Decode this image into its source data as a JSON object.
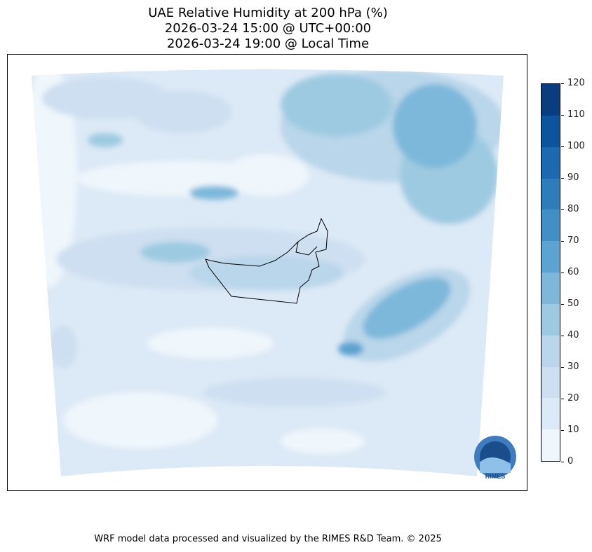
{
  "title": {
    "line1": "UAE Relative Humidity at 200 hPa (%)",
    "line2": "2026-03-24 15:00 @ UTC+00:00",
    "line3": "2026-03-24 19:00 @ Local Time"
  },
  "colorbar": {
    "ticks": [
      "0",
      "10",
      "20",
      "30",
      "40",
      "50",
      "60",
      "70",
      "80",
      "90",
      "100",
      "110",
      "120"
    ],
    "colors": [
      "#eff6fc",
      "#dce9f6",
      "#cddff1",
      "#b9d6ea",
      "#9ecae1",
      "#7db8da",
      "#5ba3d0",
      "#4090c5",
      "#2d7dbb",
      "#1b69af",
      "#0b559f",
      "#083d7f"
    ]
  },
  "logo": {
    "text": "RIMES"
  },
  "footer": "WRF model data processed and visualized by the RIMES R&D Team. © 2025"
}
